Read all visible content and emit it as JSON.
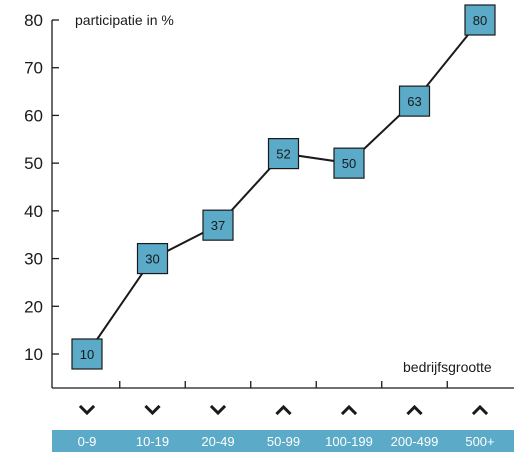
{
  "chart_data": {
    "type": "line",
    "ylabel": "participatie in %",
    "xlabel": "bedrijfsgrootte",
    "ylim": [
      5,
      80
    ],
    "yticks": [
      10,
      20,
      30,
      40,
      50,
      60,
      70,
      80
    ],
    "categories": [
      "0-9",
      "10-19",
      "20-49",
      "50-99",
      "100-199",
      "200-499",
      "500+"
    ],
    "values": [
      10,
      30,
      37,
      52,
      50,
      63,
      80
    ],
    "arrows": [
      "down",
      "down",
      "down",
      "up",
      "up",
      "up",
      "up"
    ],
    "grid": false,
    "colors": {
      "marker": "#5aaac8",
      "band": "#5aaac8",
      "line": "#1a1a1a"
    }
  }
}
